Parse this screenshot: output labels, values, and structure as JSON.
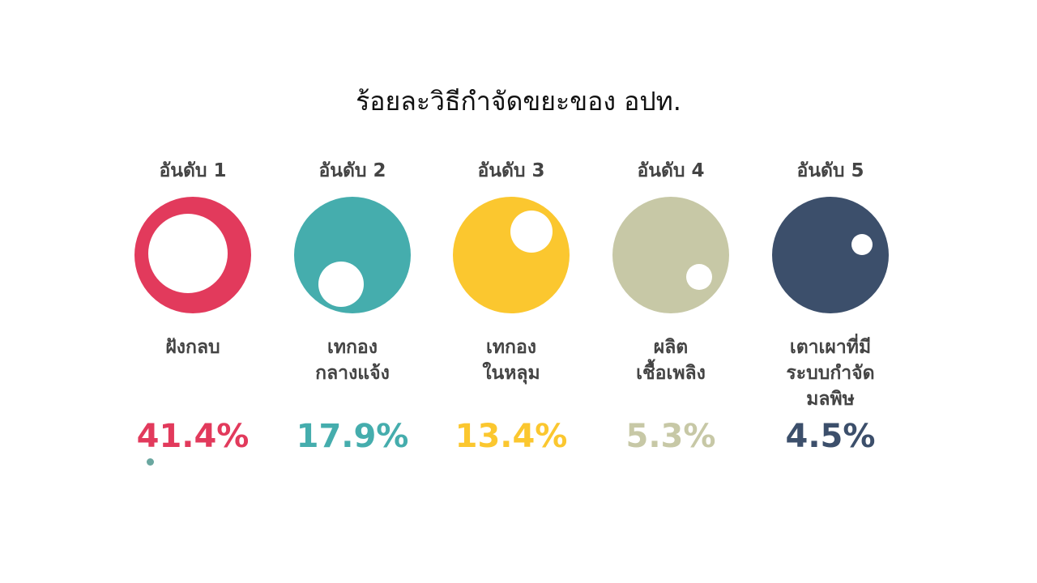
{
  "title": "ร้อยละวิธีกำจัดขยะของ อปท.",
  "chart_data": {
    "type": "bubble-infographic",
    "title": "ร้อยละวิธีกำจัดขยะของ อปท.",
    "categories": [
      {
        "rank": "อันดับ 1",
        "label": "ฝังกลบ",
        "value": 41.4,
        "value_label": "41.4%",
        "color": "#e23a5c"
      },
      {
        "rank": "อันดับ 2",
        "label": "เทกอง\nกลางแจ้ง",
        "value": 17.9,
        "value_label": "17.9%",
        "color": "#45adad"
      },
      {
        "rank": "อันดับ 3",
        "label": "เทกอง\nในหลุม",
        "value": 13.4,
        "value_label": "13.4%",
        "color": "#fbc72f"
      },
      {
        "rank": "อันดับ 4",
        "label": "ผลิต\nเชื้อเพลิง",
        "value": 5.3,
        "value_label": "5.3%",
        "color": "#c7c8a6"
      },
      {
        "rank": "อันดับ 5",
        "label": "เตาเผาที่มี\nระบบกำจัด\nมลพิษ",
        "value": 4.5,
        "value_label": "4.5%",
        "color": "#3c4f6b"
      }
    ]
  }
}
